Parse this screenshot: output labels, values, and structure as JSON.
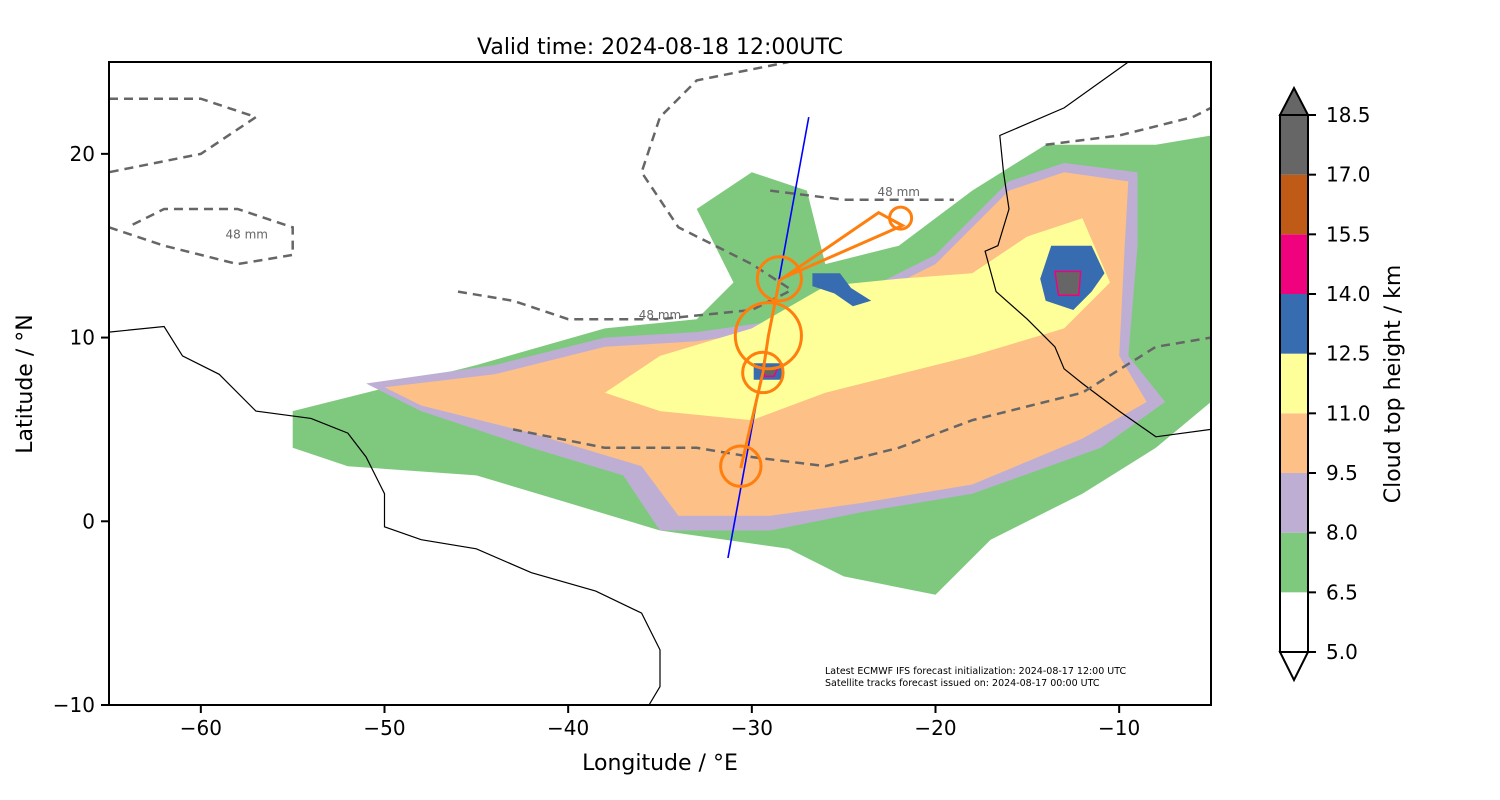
{
  "chart_data": {
    "type": "map",
    "title": "Valid time: 2024-08-18 12:00UTC",
    "xlabel": "Longitude / °E",
    "ylabel": "Latitude / °N",
    "xlim": [
      -65,
      -5
    ],
    "ylim": [
      -10,
      25
    ],
    "xticks": [
      {
        "v": -60,
        "label": "−60"
      },
      {
        "v": -50,
        "label": "−50"
      },
      {
        "v": -40,
        "label": "−40"
      },
      {
        "v": -30,
        "label": "−30"
      },
      {
        "v": -20,
        "label": "−20"
      },
      {
        "v": -10,
        "label": "−10"
      }
    ],
    "yticks": [
      {
        "v": -10,
        "label": "−10"
      },
      {
        "v": 0,
        "label": "0"
      },
      {
        "v": 10,
        "label": "10"
      },
      {
        "v": 20,
        "label": "20"
      }
    ],
    "colorbar": {
      "label": "Cloud top height / km",
      "levels": [
        5.0,
        6.5,
        8.0,
        9.5,
        11.0,
        12.5,
        14.0,
        15.5,
        17.0,
        18.5
      ],
      "level_labels": [
        "5.0",
        "6.5",
        "8.0",
        "9.5",
        "11.0",
        "12.5",
        "14.0",
        "15.5",
        "17.0",
        "18.5"
      ],
      "colors": [
        "#ffffff",
        "#7fc97f",
        "#beaed4",
        "#fdc086",
        "#ffff99",
        "#386cb0",
        "#f0027f",
        "#bf5b17",
        "#666666"
      ]
    },
    "cloud_regions": [
      {
        "level": 1,
        "pts": [
          [
            -55,
            6
          ],
          [
            -45,
            8.5
          ],
          [
            -38,
            10.5
          ],
          [
            -33,
            11
          ],
          [
            -31,
            13
          ],
          [
            -33,
            17
          ],
          [
            -30,
            19
          ],
          [
            -27,
            18
          ],
          [
            -26,
            14
          ],
          [
            -22,
            15
          ],
          [
            -18,
            18
          ],
          [
            -14,
            20.5
          ],
          [
            -8,
            20.5
          ],
          [
            -5,
            21
          ],
          [
            -5,
            6.5
          ],
          [
            -8,
            4
          ],
          [
            -12,
            1.5
          ],
          [
            -17,
            -1
          ],
          [
            -20,
            -4
          ],
          [
            -25,
            -3
          ],
          [
            -28,
            -1.5
          ],
          [
            -35,
            -0.5
          ],
          [
            -40,
            1
          ],
          [
            -45,
            2.5
          ],
          [
            -52,
            3
          ],
          [
            -55,
            4
          ]
        ]
      },
      {
        "level": 2,
        "pts": [
          [
            -51,
            7.5
          ],
          [
            -44,
            8.5
          ],
          [
            -38,
            10
          ],
          [
            -33,
            10.3
          ],
          [
            -28,
            11
          ],
          [
            -24,
            12.5
          ],
          [
            -20,
            14.5
          ],
          [
            -16,
            18.5
          ],
          [
            -13,
            19.5
          ],
          [
            -9,
            19
          ],
          [
            -9,
            15
          ],
          [
            -9.5,
            9
          ],
          [
            -7.5,
            6.5
          ],
          [
            -11,
            4
          ],
          [
            -18,
            1.5
          ],
          [
            -24,
            0.5
          ],
          [
            -29,
            -0.5
          ],
          [
            -35,
            -0.5
          ],
          [
            -37,
            2.5
          ],
          [
            -42,
            4
          ],
          [
            -48,
            6
          ]
        ]
      },
      {
        "level": 3,
        "pts": [
          [
            -50,
            7.3
          ],
          [
            -44,
            8
          ],
          [
            -38,
            9.5
          ],
          [
            -33,
            9.8
          ],
          [
            -28,
            10.5
          ],
          [
            -24,
            12
          ],
          [
            -20,
            14
          ],
          [
            -16,
            18
          ],
          [
            -13,
            19
          ],
          [
            -9.5,
            18.5
          ],
          [
            -9.7,
            15
          ],
          [
            -10,
            9
          ],
          [
            -8.5,
            6.5
          ],
          [
            -12,
            4.5
          ],
          [
            -18,
            2
          ],
          [
            -24,
            1
          ],
          [
            -29,
            0.3
          ],
          [
            -34,
            0.3
          ],
          [
            -36,
            3
          ],
          [
            -42,
            4.8
          ],
          [
            -48,
            6.3
          ]
        ]
      },
      {
        "level": 4,
        "pts": [
          [
            -38,
            7
          ],
          [
            -35,
            9
          ],
          [
            -30,
            10.5
          ],
          [
            -26,
            12.8
          ],
          [
            -22,
            13.2
          ],
          [
            -18,
            13.5
          ],
          [
            -15,
            15.5
          ],
          [
            -12,
            16.5
          ],
          [
            -10.5,
            13
          ],
          [
            -13,
            10.5
          ],
          [
            -18,
            9
          ],
          [
            -22,
            8
          ],
          [
            -26,
            7
          ],
          [
            -30,
            5.5
          ],
          [
            -35,
            6
          ]
        ]
      },
      {
        "level": 5,
        "pts": [
          [
            -29.9,
            8.6
          ],
          [
            -28.3,
            8.6
          ],
          [
            -28.3,
            7.7
          ],
          [
            -29.9,
            7.7
          ]
        ]
      },
      {
        "level": 5,
        "pts": [
          [
            -26.7,
            13.5
          ],
          [
            -25.2,
            13.5
          ],
          [
            -24.6,
            12.7
          ],
          [
            -23.5,
            12
          ],
          [
            -24.5,
            11.7
          ],
          [
            -25.5,
            12.4
          ],
          [
            -26.7,
            12.8
          ]
        ]
      },
      {
        "level": 5,
        "pts": [
          [
            -13.7,
            15
          ],
          [
            -11.5,
            15
          ],
          [
            -10.8,
            13.5
          ],
          [
            -11.5,
            12.5
          ],
          [
            -12.5,
            11.5
          ],
          [
            -14,
            12
          ],
          [
            -14.3,
            13.2
          ]
        ]
      },
      {
        "level": 8,
        "pts": [
          [
            -13.5,
            13.6
          ],
          [
            -12.1,
            13.6
          ],
          [
            -12.2,
            12.3
          ],
          [
            -13.3,
            12.3
          ]
        ]
      },
      {
        "level": 8,
        "pts": [
          [
            -29.4,
            8.3
          ],
          [
            -28.6,
            8.3
          ],
          [
            -28.8,
            7.9
          ],
          [
            -29.3,
            7.9
          ]
        ]
      }
    ],
    "precip_contour": {
      "label": "48 mm",
      "lines": [
        [
          [
            -65,
            16
          ],
          [
            -62,
            15
          ],
          [
            -58,
            14
          ],
          [
            -55,
            14.5
          ],
          [
            -55,
            16
          ],
          [
            -58,
            17
          ],
          [
            -62,
            17
          ],
          [
            -64,
            16
          ]
        ],
        [
          [
            -46,
            12.5
          ],
          [
            -43,
            12
          ],
          [
            -40,
            11
          ],
          [
            -35,
            11
          ],
          [
            -30,
            11.5
          ],
          [
            -28,
            12.5
          ]
        ],
        [
          [
            -28,
            12.7
          ],
          [
            -30,
            14
          ],
          [
            -34,
            16
          ],
          [
            -36,
            19
          ],
          [
            -35,
            22
          ],
          [
            -33,
            24
          ],
          [
            -28,
            25
          ]
        ],
        [
          [
            -29,
            18
          ],
          [
            -25,
            17.5
          ],
          [
            -21,
            17.5
          ],
          [
            -19,
            17.5
          ]
        ],
        [
          [
            -14,
            20.5
          ],
          [
            -10,
            21
          ],
          [
            -6,
            22
          ],
          [
            -5,
            22.5
          ]
        ],
        [
          [
            -43,
            5
          ],
          [
            -38,
            4
          ],
          [
            -33,
            4
          ],
          [
            -30,
            3.5
          ],
          [
            -26,
            3
          ],
          [
            -22,
            4
          ],
          [
            -18,
            5.5
          ],
          [
            -12,
            7
          ],
          [
            -8,
            9.5
          ],
          [
            -5,
            10
          ]
        ],
        [
          [
            -65,
            23
          ],
          [
            -60,
            23
          ],
          [
            -57,
            22
          ],
          [
            -60,
            20
          ],
          [
            -65,
            19
          ]
        ]
      ]
    },
    "coastlines": [
      [
        [
          -9.5,
          25
        ],
        [
          -13,
          22.5
        ],
        [
          -16.5,
          21
        ],
        [
          -16.3,
          19
        ],
        [
          -16,
          17
        ],
        [
          -16.6,
          15
        ],
        [
          -17.3,
          14.7
        ],
        [
          -16.7,
          12.5
        ],
        [
          -15,
          11
        ],
        [
          -13.5,
          9.5
        ],
        [
          -13,
          8.3
        ],
        [
          -12,
          7.5
        ],
        [
          -10,
          6
        ],
        [
          -8,
          4.6
        ],
        [
          -5,
          5
        ]
      ],
      [
        [
          -65,
          10.3
        ],
        [
          -62,
          10.6
        ],
        [
          -61,
          9
        ],
        [
          -59,
          8
        ],
        [
          -57,
          6
        ],
        [
          -54,
          5.6
        ],
        [
          -52,
          4.8
        ],
        [
          -51,
          3.5
        ],
        [
          -50,
          1.5
        ],
        [
          -50,
          -0.3
        ],
        [
          -48,
          -1
        ],
        [
          -45,
          -1.5
        ],
        [
          -42,
          -2.8
        ],
        [
          -38.5,
          -3.8
        ],
        [
          -36,
          -5
        ],
        [
          -35,
          -7
        ],
        [
          -35,
          -9
        ],
        [
          -35.6,
          -10
        ]
      ]
    ],
    "satellite_track": [
      [
        -31.3,
        -2
      ],
      [
        -26.9,
        22
      ]
    ],
    "flight_track": [
      [
        -30.6,
        2.9
      ],
      [
        -29.4,
        8.1
      ],
      [
        -29.1,
        10.1
      ],
      [
        -28.5,
        13.1
      ],
      [
        -23.1,
        16.8
      ],
      [
        -21.8,
        16.1
      ],
      [
        -28.4,
        13.2
      ]
    ],
    "flight_circles": [
      {
        "c": [
          -30.6,
          3
        ],
        "r": 1.1
      },
      {
        "c": [
          -29.4,
          8.1
        ],
        "r": 1.1
      },
      {
        "c": [
          -29.1,
          10.1
        ],
        "r": 1.8
      },
      {
        "c": [
          -28.5,
          13.2
        ],
        "r": 1.2
      },
      {
        "c": [
          -21.9,
          16.5
        ],
        "r": 0.6
      }
    ],
    "contour_labels": [
      {
        "pos": [
          -35,
          11
        ],
        "text": "48 mm"
      },
      {
        "pos": [
          -22,
          17.7
        ],
        "text": "48 mm"
      },
      {
        "pos": [
          -57.5,
          15.4
        ],
        "text": "48 mm"
      }
    ],
    "annotation": [
      "Latest ECMWF IFS forecast initialization: 2024-08-17 12:00 UTC",
      "Satellite tracks forecast issued on: 2024-08-17 00:00 UTC"
    ],
    "track_colors": {
      "satellite": "#0000ff",
      "flight": "#ff7f0e"
    }
  }
}
